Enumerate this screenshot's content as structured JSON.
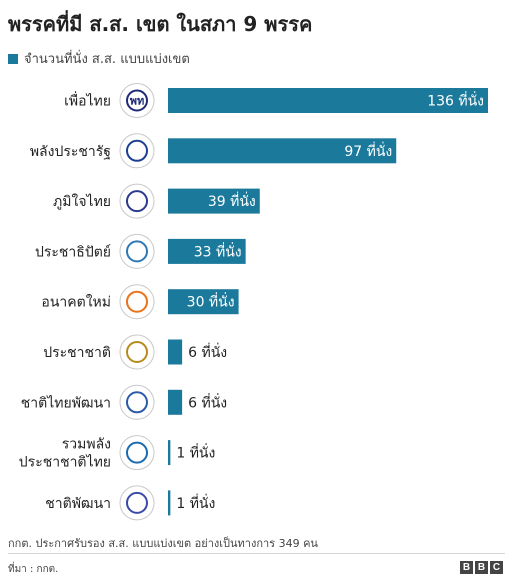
{
  "title": "พรรคที่มี ส.ส. เขต ในสภา 9 พรรค",
  "legend": {
    "label": "จำนวนที่นั่ง ส.ส. แบบแบ่งเขต",
    "color": "#1b7a9c"
  },
  "footnote": "กกต. ประกาศรับรอง ส.ส. แบบแบ่งเขต อย่างเป็นทางการ 349 คน",
  "source": "ที่มา : กกต.",
  "brand": [
    "B",
    "B",
    "C"
  ],
  "chart_data": {
    "type": "bar",
    "orientation": "horizontal",
    "unit_suffix": "ที่นั่ง",
    "bar_color": "#1b7a9c",
    "xlim": [
      0,
      136
    ],
    "grid": false,
    "categories": [
      [
        "เพื่อไทย"
      ],
      [
        "พลังประชารัฐ"
      ],
      [
        "ภูมิใจไทย"
      ],
      [
        "ประชาธิปัตย์"
      ],
      [
        "อนาคตใหม่"
      ],
      [
        "ประชาชาติ"
      ],
      [
        "ชาติไทยพัฒนา"
      ],
      [
        "รวมพลัง",
        "ประชาชาติไทย"
      ],
      [
        "ชาติพัฒนา"
      ]
    ],
    "values": [
      136,
      97,
      39,
      33,
      30,
      6,
      6,
      1,
      1
    ],
    "value_labels": [
      "136 ที่นั่ง",
      "97 ที่นั่ง",
      "39 ที่นั่ง",
      "33 ที่นั่ง",
      "30 ที่นั่ง",
      "6 ที่นั่ง",
      "6 ที่นั่ง",
      "1 ที่นั่ง",
      "1 ที่นั่ง"
    ],
    "logo_icons": [
      "pheu-thai-logo-icon",
      "palang-pracharat-logo-icon",
      "bhumjaithai-logo-icon",
      "democrat-logo-icon",
      "future-forward-logo-icon",
      "prachachat-logo-icon",
      "chartthaipattana-logo-icon",
      "action-coalition-logo-icon",
      "chart-pattana-logo-icon"
    ],
    "logo_texts": [
      "พท",
      "",
      "",
      "",
      "",
      "",
      "",
      "",
      ""
    ]
  }
}
